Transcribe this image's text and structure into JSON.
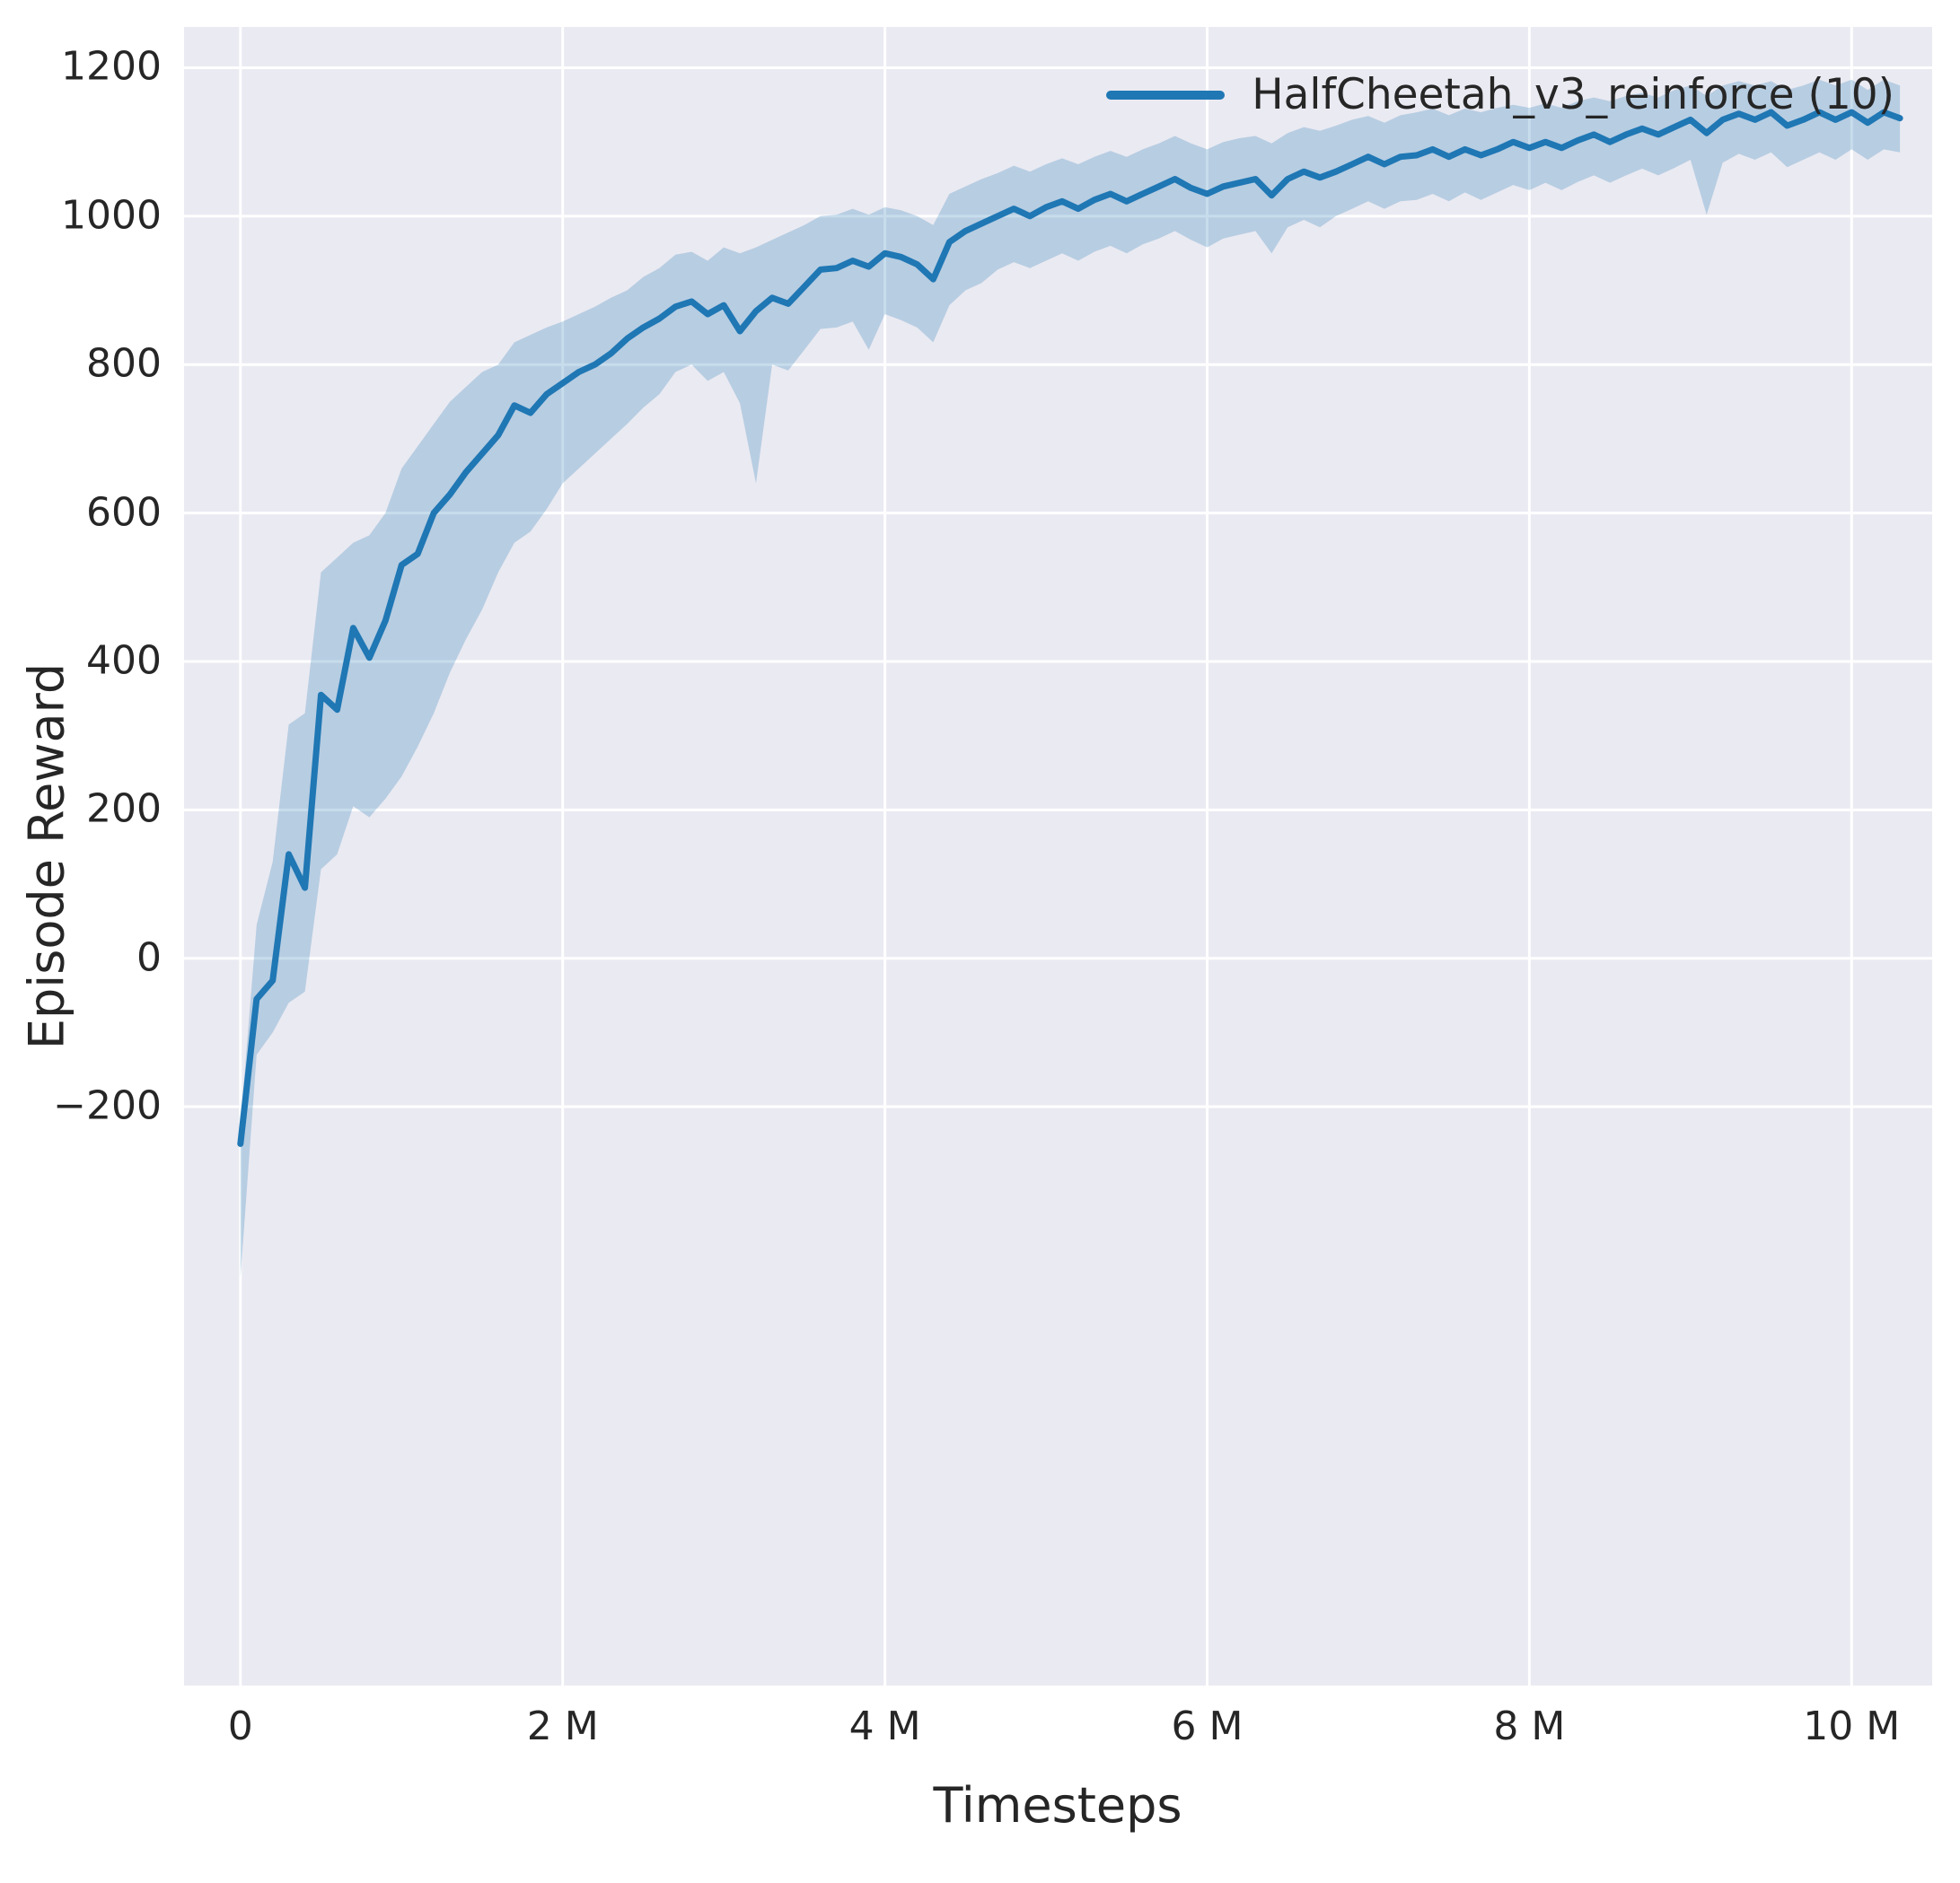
{
  "figure": {
    "background": "#ffffff",
    "axes_background": "#eaeaf2",
    "grid_color": "#ffffff",
    "text_color": "#262626"
  },
  "chart_data": {
    "type": "line",
    "title": "",
    "xlabel": "Timesteps",
    "ylabel": "Episode Reward",
    "x_unit": "millions of timesteps",
    "grid": true,
    "legend_position": "upper right",
    "legend": [
      {
        "label": "HalfCheetah_v3_reinforce (10)",
        "color": "#1f77b4"
      }
    ],
    "xlim_m": [
      -0.35,
      10.5
    ],
    "ylim": [
      -980,
      1255
    ],
    "x_ticks": [
      {
        "value": 0,
        "label": "0"
      },
      {
        "value": 2,
        "label": "2 M"
      },
      {
        "value": 4,
        "label": "4 M"
      },
      {
        "value": 6,
        "label": "6 M"
      },
      {
        "value": 8,
        "label": "8 M"
      },
      {
        "value": 10,
        "label": "10 M"
      }
    ],
    "y_ticks": [
      {
        "value": -200,
        "label": "−200"
      },
      {
        "value": 0,
        "label": "0"
      },
      {
        "value": 200,
        "label": "200"
      },
      {
        "value": 400,
        "label": "400"
      },
      {
        "value": 600,
        "label": "600"
      },
      {
        "value": 800,
        "label": "800"
      },
      {
        "value": 1000,
        "label": "1000"
      },
      {
        "value": 1200,
        "label": "1200"
      }
    ],
    "series": [
      {
        "name": "HalfCheetah_v3_reinforce (10)",
        "color": "#1f77b4",
        "band_color": "rgba(31,119,180,0.25)",
        "x": [
          0,
          0.1,
          0.2,
          0.3,
          0.4,
          0.5,
          0.6,
          0.7,
          0.8,
          0.9,
          1.0,
          1.1,
          1.2,
          1.3,
          1.4,
          1.5,
          1.6,
          1.7,
          1.8,
          1.9,
          2.0,
          2.1,
          2.2,
          2.3,
          2.4,
          2.5,
          2.6,
          2.7,
          2.8,
          2.9,
          3.0,
          3.1,
          3.2,
          3.3,
          3.4,
          3.5,
          3.6,
          3.7,
          3.8,
          3.9,
          4.0,
          4.1,
          4.2,
          4.3,
          4.4,
          4.5,
          4.6,
          4.7,
          4.8,
          4.9,
          5.0,
          5.1,
          5.2,
          5.3,
          5.4,
          5.5,
          5.6,
          5.7,
          5.8,
          5.9,
          6.0,
          6.1,
          6.2,
          6.3,
          6.4,
          6.5,
          6.6,
          6.7,
          6.8,
          6.9,
          7.0,
          7.1,
          7.2,
          7.3,
          7.4,
          7.5,
          7.6,
          7.7,
          7.8,
          7.9,
          8.0,
          8.1,
          8.2,
          8.3,
          8.4,
          8.5,
          8.6,
          8.7,
          8.8,
          8.9,
          9.0,
          9.1,
          9.2,
          9.3,
          9.4,
          9.5,
          9.6,
          9.7,
          9.8,
          9.9,
          10.0,
          10.1,
          10.2,
          10.3
        ],
        "mean": [
          -250,
          -55,
          -30,
          140,
          95,
          355,
          335,
          445,
          405,
          455,
          530,
          545,
          600,
          625,
          655,
          680,
          705,
          745,
          735,
          760,
          775,
          790,
          800,
          815,
          835,
          850,
          862,
          878,
          885,
          868,
          880,
          845,
          872,
          890,
          882,
          905,
          928,
          930,
          940,
          932,
          950,
          945,
          935,
          915,
          965,
          980,
          990,
          1000,
          1010,
          1000,
          1012,
          1020,
          1010,
          1022,
          1030,
          1020,
          1030,
          1040,
          1050,
          1038,
          1030,
          1040,
          1045,
          1050,
          1028,
          1050,
          1060,
          1052,
          1060,
          1070,
          1080,
          1070,
          1080,
          1082,
          1090,
          1080,
          1090,
          1082,
          1090,
          1100,
          1092,
          1100,
          1092,
          1102,
          1110,
          1100,
          1110,
          1118,
          1110,
          1120,
          1130,
          1112,
          1130,
          1138,
          1130,
          1140,
          1122,
          1130,
          1140,
          1130,
          1140,
          1126,
          1140,
          1132
        ],
        "low": [
          -430,
          -130,
          -100,
          -60,
          -45,
          120,
          140,
          205,
          190,
          215,
          245,
          285,
          330,
          385,
          430,
          470,
          520,
          560,
          575,
          605,
          640,
          660,
          680,
          700,
          720,
          742,
          760,
          790,
          800,
          778,
          790,
          748,
          640,
          800,
          792,
          820,
          848,
          850,
          858,
          820,
          868,
          860,
          850,
          830,
          880,
          900,
          910,
          928,
          938,
          930,
          940,
          950,
          940,
          952,
          960,
          950,
          962,
          970,
          980,
          968,
          958,
          970,
          975,
          980,
          950,
          985,
          995,
          985,
          1000,
          1010,
          1020,
          1010,
          1020,
          1022,
          1030,
          1020,
          1032,
          1022,
          1032,
          1042,
          1035,
          1045,
          1035,
          1046,
          1055,
          1045,
          1055,
          1064,
          1055,
          1065,
          1076,
          1002,
          1072,
          1084,
          1076,
          1086,
          1066,
          1076,
          1086,
          1076,
          1090,
          1076,
          1090,
          1086
        ],
        "high": [
          -225,
          45,
          130,
          315,
          330,
          520,
          540,
          560,
          570,
          600,
          660,
          690,
          720,
          750,
          770,
          790,
          800,
          830,
          840,
          850,
          858,
          868,
          878,
          890,
          900,
          918,
          930,
          948,
          952,
          940,
          958,
          950,
          958,
          968,
          978,
          988,
          1000,
          1002,
          1010,
          1002,
          1012,
          1008,
          1000,
          988,
          1030,
          1040,
          1050,
          1058,
          1068,
          1060,
          1070,
          1078,
          1070,
          1080,
          1088,
          1080,
          1090,
          1098,
          1108,
          1098,
          1090,
          1100,
          1105,
          1108,
          1098,
          1112,
          1120,
          1115,
          1122,
          1130,
          1135,
          1126,
          1136,
          1140,
          1145,
          1136,
          1145,
          1140,
          1146,
          1150,
          1146,
          1152,
          1146,
          1155,
          1160,
          1155,
          1162,
          1166,
          1160,
          1170,
          1176,
          1162,
          1176,
          1182,
          1176,
          1182,
          1170,
          1176,
          1184,
          1176,
          1184,
          1170,
          1184,
          1176
        ]
      }
    ]
  }
}
